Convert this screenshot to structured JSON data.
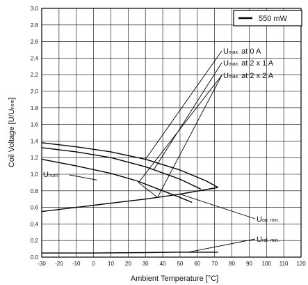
{
  "chart_data": {
    "type": "line",
    "xlabel": "Ambient Temperature [°C]",
    "ylabel": "Coil Voltage [U/U",
    "ylabel_sub": "nom",
    "ylabel_close": "]",
    "xlim": [
      -30,
      120
    ],
    "ylim": [
      0,
      3.0
    ],
    "x_ticks": [
      -30,
      -20,
      -10,
      0,
      10,
      20,
      30,
      40,
      50,
      60,
      70,
      80,
      90,
      100,
      110,
      120
    ],
    "x_tick_labels": [
      "-30",
      "-20",
      "-10",
      "0",
      "10",
      "20",
      "30",
      "40",
      "50",
      "60",
      "70",
      "80",
      "90",
      "100",
      "110",
      "120"
    ],
    "y_ticks": [
      0,
      0.2,
      0.4,
      0.6,
      0.8,
      1.0,
      1.2,
      1.4,
      1.6,
      1.8,
      2.0,
      2.2,
      2.4,
      2.6,
      2.8,
      3.0
    ],
    "y_tick_labels": [
      "0.0",
      "0.2",
      "0.4",
      "0.6",
      "0.8",
      "1.0",
      "1.2",
      "1.4",
      "1.6",
      "1.8",
      "2.0",
      "2.2",
      "2.4",
      "2.6",
      "2.8",
      "3.0"
    ],
    "grid": true,
    "legend_placement": "top-right",
    "legend": {
      "label": "550 mW"
    },
    "series": [
      {
        "key": "umax0",
        "x": [
          -30,
          -10,
          10,
          30,
          50,
          65,
          72
        ],
        "y": [
          1.38,
          1.33,
          1.27,
          1.18,
          1.05,
          0.92,
          0.84
        ]
      },
      {
        "key": "umax1",
        "x": [
          -30,
          -10,
          10,
          30,
          50,
          62
        ],
        "y": [
          1.32,
          1.27,
          1.2,
          1.09,
          0.94,
          0.82
        ]
      },
      {
        "key": "umax2",
        "x": [
          -30,
          -10,
          10,
          25,
          40,
          50,
          57
        ],
        "y": [
          1.18,
          1.1,
          1.01,
          0.92,
          0.8,
          0.72,
          0.66
        ]
      },
      {
        "key": "uop",
        "x": [
          -30,
          -10,
          10,
          30,
          50,
          72
        ],
        "y": [
          0.55,
          0.6,
          0.65,
          0.7,
          0.76,
          0.84
        ]
      },
      {
        "key": "urel",
        "x": [
          -30,
          0,
          30,
          50,
          72
        ],
        "y": [
          0.05,
          0.05,
          0.055,
          0.06,
          0.06
        ]
      }
    ],
    "annotations": {
      "umax0": {
        "main": "U",
        "sub": "max.",
        "rest": " at 0 A"
      },
      "umax1": {
        "main": "U",
        "sub": "max.",
        "rest": " at 2 x 1 A"
      },
      "umax2": {
        "main": "U",
        "sub": "max.",
        "rest": " at 2 x 2 A"
      },
      "unom": {
        "main": "U",
        "sub": "nom."
      },
      "uop": {
        "main": "U",
        "sub": "op. min."
      },
      "urel": {
        "main": "U",
        "sub": "rel. min."
      }
    }
  }
}
